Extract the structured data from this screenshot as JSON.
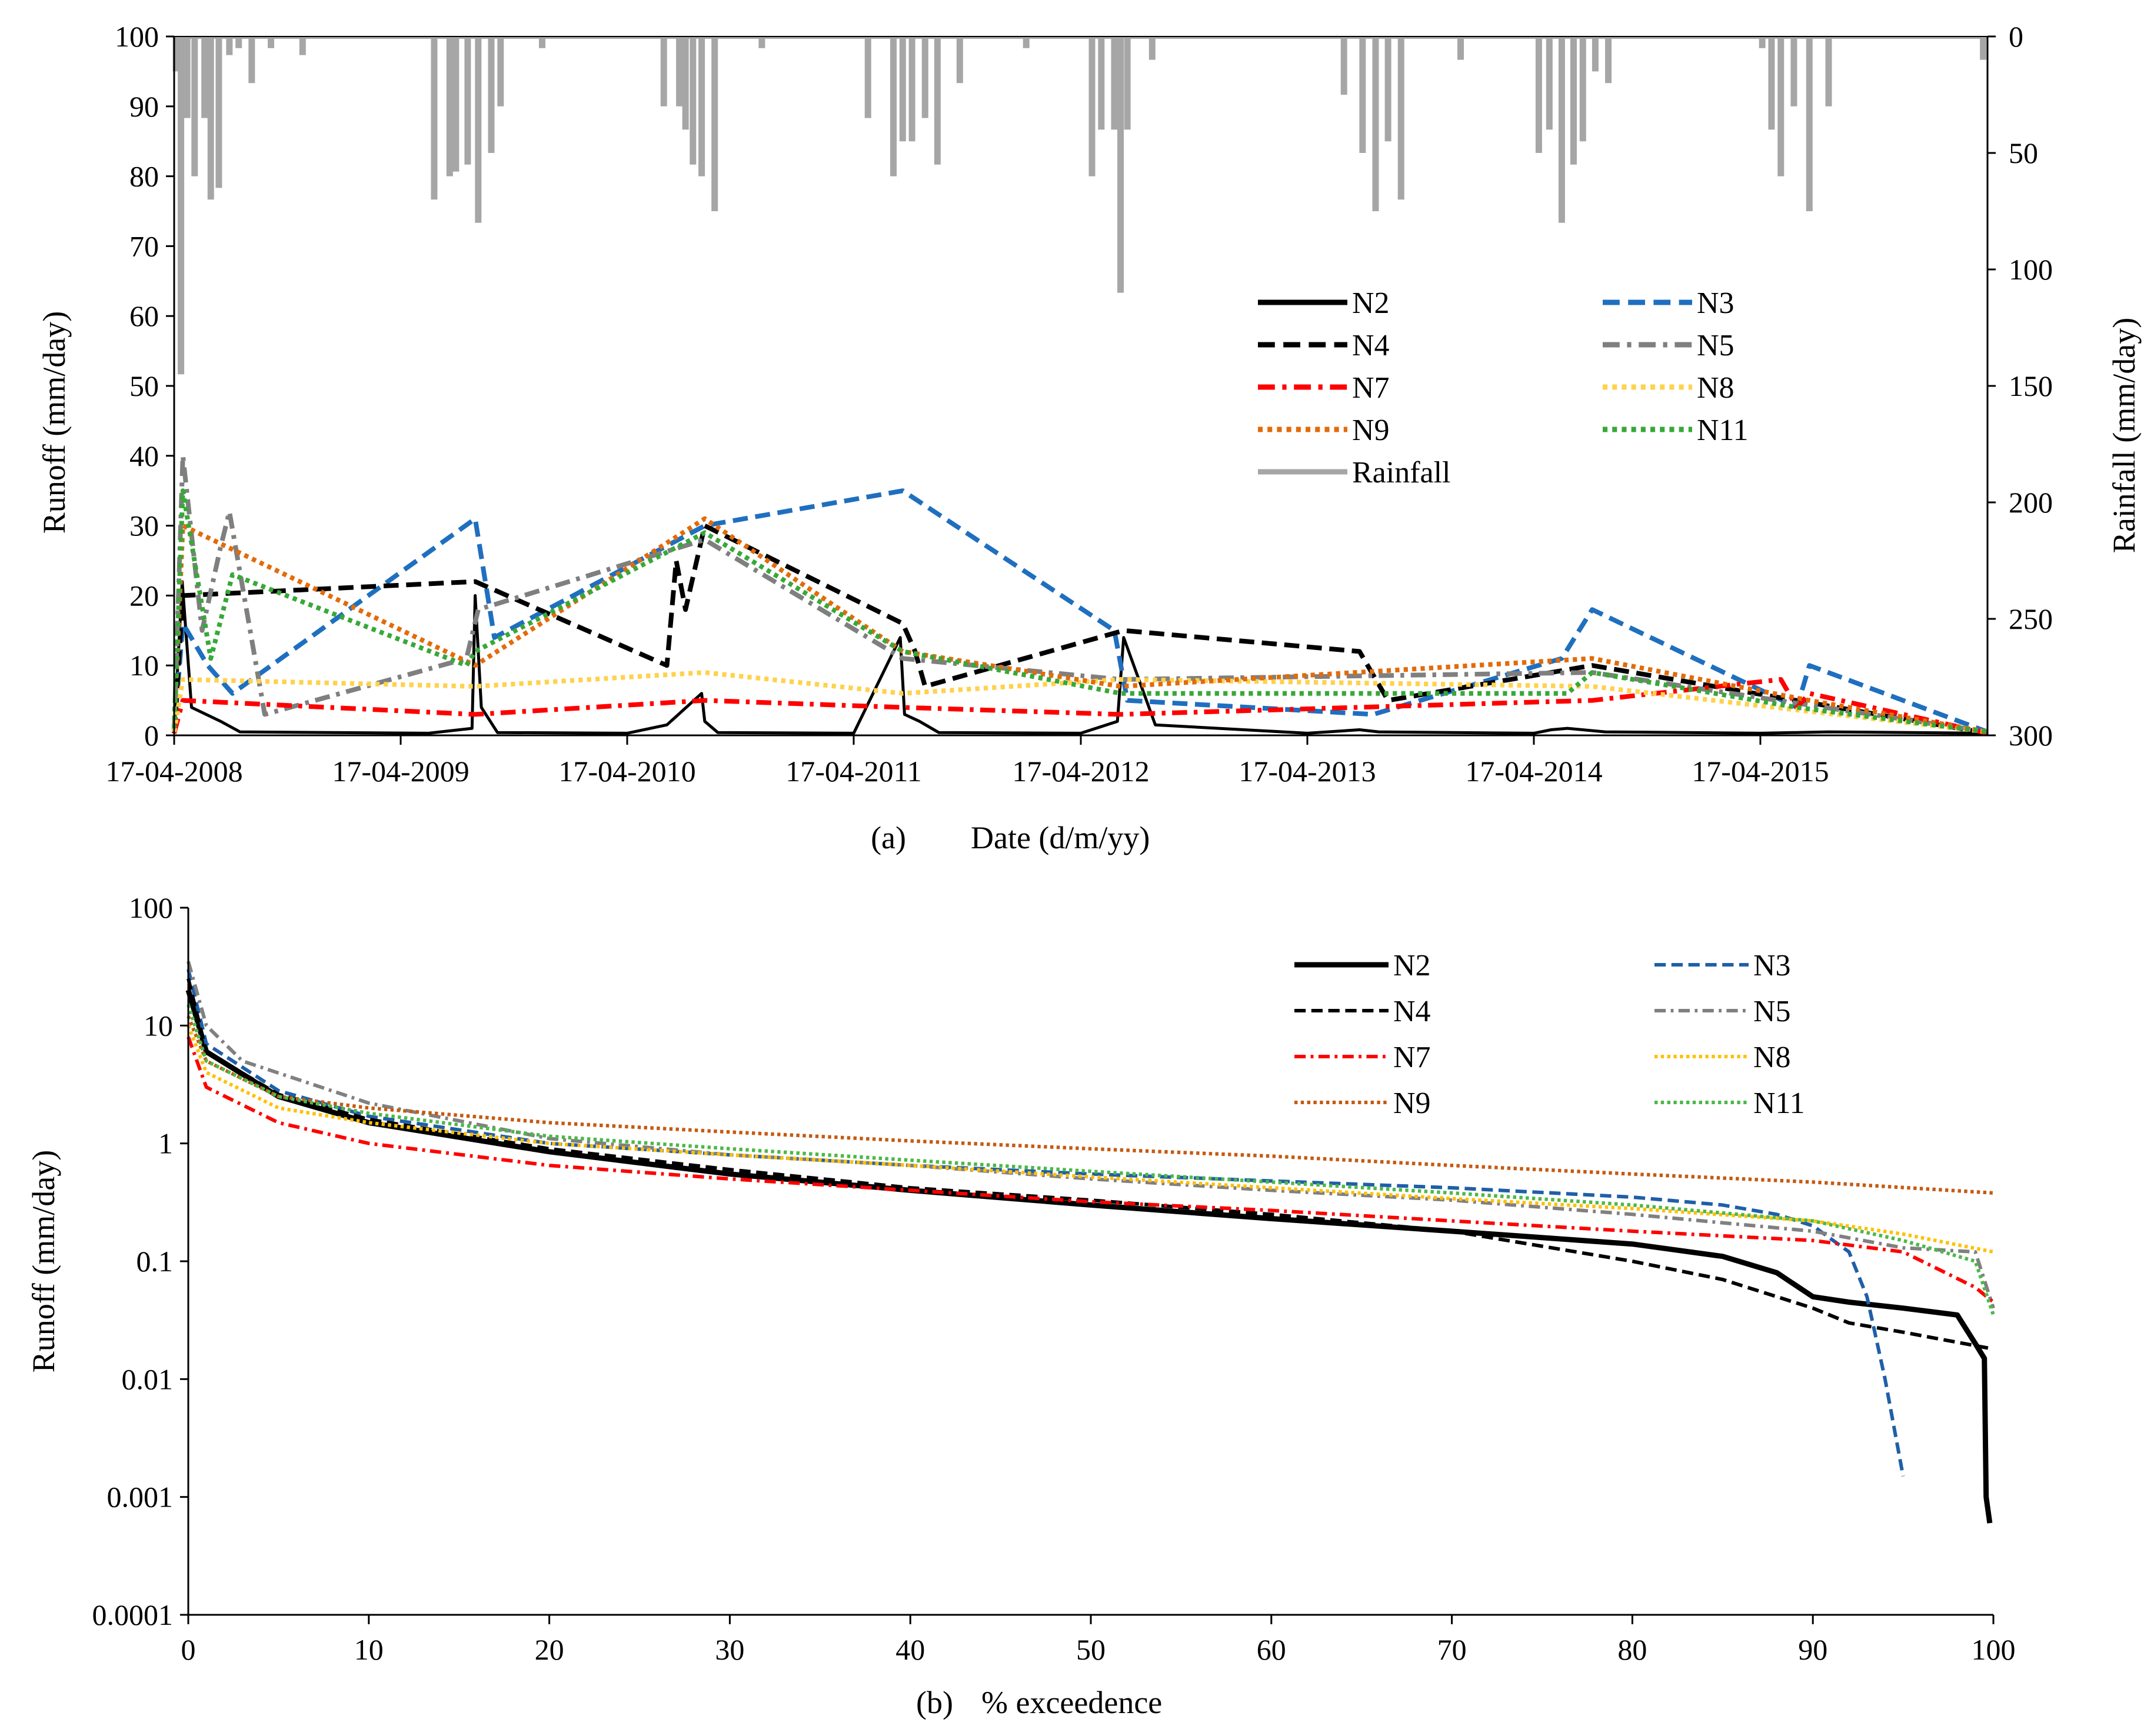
{
  "chart_data": [
    {
      "panel": "(a)",
      "type": "line",
      "xlabel": "Date (d/m/yy)",
      "ylabel": "Runoff (mm/day)",
      "y2label": "Rainfall (mm/day)",
      "xlim": [
        "2008-04-17",
        "2016-04-17"
      ],
      "ylim": [
        0,
        100
      ],
      "y2lim": [
        0,
        300
      ],
      "y2_inverted": true,
      "x_tick_labels": [
        "17-04-2008",
        "17-04-2009",
        "17-04-2010",
        "17-04-2011",
        "17-04-2012",
        "17-04-2013",
        "17-04-2014",
        "17-04-2015"
      ],
      "y_tick_labels": [
        "0",
        "10",
        "20",
        "30",
        "40",
        "50",
        "60",
        "70",
        "80",
        "90",
        "100"
      ],
      "y2_tick_labels": [
        "0",
        "50",
        "100",
        "150",
        "200",
        "250",
        "300"
      ],
      "legend_position": "center-right",
      "colors": {
        "N2": "#000000",
        "N3": "#1f6fbf",
        "N4": "#000000",
        "N5": "#7f7f7f",
        "N7": "#ff0000",
        "N8": "#ffd24d",
        "N9": "#e26b0a",
        "N11": "#38a838",
        "Rainfall": "#a6a6a6"
      },
      "series": [
        {
          "name": "Rainfall",
          "axis": "right",
          "style": "bars",
          "x": [
            "2008-04-20",
            "2008-04-28",
            "2008-05-08",
            "2008-05-20",
            "2008-06-05",
            "2008-06-15",
            "2008-06-28",
            "2008-07-15",
            "2008-07-30",
            "2008-08-20",
            "2008-09-20",
            "2008-11-10",
            "2009-06-10",
            "2009-07-05",
            "2009-07-15",
            "2009-08-03",
            "2009-08-20",
            "2009-09-10",
            "2009-09-25",
            "2009-12-01",
            "2010-06-15",
            "2010-07-10",
            "2010-07-20",
            "2010-08-01",
            "2010-08-15",
            "2010-09-05",
            "2010-11-20",
            "2011-05-10",
            "2011-06-20",
            "2011-07-05",
            "2011-07-20",
            "2011-08-10",
            "2011-08-30",
            "2011-10-05",
            "2012-01-20",
            "2012-05-05",
            "2012-05-20",
            "2012-06-10",
            "2012-06-20",
            "2012-07-01",
            "2012-08-10",
            "2013-06-15",
            "2013-07-15",
            "2013-08-05",
            "2013-08-25",
            "2013-09-15",
            "2013-12-20",
            "2014-04-25",
            "2014-05-12",
            "2014-06-01",
            "2014-06-20",
            "2014-07-05",
            "2014-07-25",
            "2014-08-15",
            "2015-04-20",
            "2015-05-05",
            "2015-05-20",
            "2015-06-10",
            "2015-07-05",
            "2015-08-05",
            "2016-04-10"
          ],
          "values": [
            15,
            145,
            35,
            60,
            35,
            70,
            65,
            8,
            5,
            20,
            5,
            8,
            70,
            60,
            58,
            55,
            80,
            50,
            30,
            5,
            30,
            30,
            40,
            55,
            60,
            75,
            5,
            35,
            60,
            45,
            45,
            35,
            55,
            20,
            5,
            60,
            40,
            40,
            110,
            40,
            10,
            25,
            50,
            75,
            45,
            70,
            10,
            50,
            40,
            80,
            55,
            45,
            15,
            20,
            5,
            40,
            60,
            30,
            75,
            30,
            10
          ]
        },
        {
          "name": "N2",
          "axis": "left",
          "style": "solid",
          "x": [
            "2008-04-17",
            "2008-04-30",
            "2008-05-15",
            "2008-07-01",
            "2008-08-01",
            "2009-06-01",
            "2009-08-10",
            "2009-08-15",
            "2009-08-25",
            "2009-09-20",
            "2010-04-17",
            "2010-06-20",
            "2010-08-15",
            "2010-08-20",
            "2010-09-10",
            "2011-04-17",
            "2011-07-01",
            "2011-07-08",
            "2011-08-01",
            "2011-09-01",
            "2012-04-17",
            "2012-06-15",
            "2012-06-25",
            "2012-08-15",
            "2013-04-17",
            "2013-07-10",
            "2013-08-10",
            "2014-04-17",
            "2014-05-15",
            "2014-06-10",
            "2014-08-10",
            "2015-04-17",
            "2015-06-15",
            "2015-08-05",
            "2016-04-17"
          ],
          "values": [
            0.3,
            22,
            4,
            2,
            0.5,
            0.3,
            1,
            20,
            4,
            0.4,
            0.3,
            1.5,
            6,
            2,
            0.4,
            0.3,
            14,
            3,
            2,
            0.4,
            0.3,
            2,
            14,
            1.5,
            0.3,
            0.8,
            0.5,
            0.3,
            0.8,
            1,
            0.5,
            0.3,
            0.4,
            0.5,
            0.3
          ]
        },
        {
          "name": "N3",
          "axis": "left",
          "style": "dashed",
          "x": [
            "2008-04-17",
            "2008-05-01",
            "2008-06-10",
            "2008-07-20",
            "2009-08-15",
            "2009-09-15",
            "2010-08-20",
            "2011-07-05",
            "2012-06-10",
            "2012-07-01",
            "2013-08-01",
            "2014-06-01",
            "2014-07-20",
            "2015-06-15",
            "2015-07-05",
            "2016-04-17"
          ],
          "values": [
            0.5,
            16,
            10,
            6,
            31,
            14,
            30,
            35,
            15,
            5,
            3,
            11,
            18,
            4,
            10,
            0.5
          ]
        },
        {
          "name": "N4",
          "axis": "left",
          "style": "dashed",
          "x": [
            "2008-04-17",
            "2008-05-01",
            "2009-08-15",
            "2010-06-20",
            "2010-07-05",
            "2010-07-20",
            "2010-08-20",
            "2011-07-05",
            "2011-07-25",
            "2011-08-10",
            "2012-06-25",
            "2013-07-10",
            "2013-08-25",
            "2014-07-20",
            "2016-04-17"
          ],
          "values": [
            0.3,
            20,
            22,
            10,
            25,
            18,
            30,
            16,
            12,
            7,
            15,
            12,
            5,
            10,
            0.3
          ]
        },
        {
          "name": "N5",
          "axis": "left",
          "style": "dash-dot",
          "x": [
            "2008-04-17",
            "2008-05-01",
            "2008-06-01",
            "2008-07-01",
            "2008-07-15",
            "2008-09-10",
            "2009-08-01",
            "2009-08-20",
            "2010-08-20",
            "2011-07-05",
            "2012-06-20",
            "2014-07-20",
            "2016-04-17"
          ],
          "values": [
            0.5,
            40,
            15,
            27,
            32,
            3,
            11,
            18,
            28,
            11,
            8,
            9,
            0.5
          ]
        },
        {
          "name": "N7",
          "axis": "left",
          "style": "dash-dot",
          "x": [
            "2008-04-17",
            "2008-05-01",
            "2009-08-15",
            "2010-08-20",
            "2011-07-05",
            "2012-06-20",
            "2014-07-20",
            "2015-05-20",
            "2015-06-15",
            "2015-07-05",
            "2016-04-17"
          ],
          "values": [
            0.3,
            5,
            3,
            5,
            4,
            3,
            5,
            8,
            4,
            6,
            0.3
          ]
        },
        {
          "name": "N8",
          "axis": "left",
          "style": "dotted",
          "x": [
            "2008-04-17",
            "2008-05-01",
            "2009-08-15",
            "2010-08-20",
            "2011-07-05",
            "2012-06-20",
            "2014-07-20",
            "2016-04-17"
          ],
          "values": [
            0.5,
            8,
            7,
            9,
            6,
            8,
            7,
            0.5
          ]
        },
        {
          "name": "N9",
          "axis": "left",
          "style": "dotted",
          "x": [
            "2008-04-17",
            "2008-05-01",
            "2009-08-15",
            "2010-08-20",
            "2011-07-05",
            "2012-06-20",
            "2014-07-20",
            "2015-07-05",
            "2016-04-17"
          ],
          "values": [
            1,
            30,
            10,
            31,
            12,
            7,
            11,
            5,
            0.5
          ]
        },
        {
          "name": "N11",
          "axis": "left",
          "style": "dotted",
          "x": [
            "2008-04-17",
            "2008-05-01",
            "2008-06-15",
            "2008-07-20",
            "2009-08-01",
            "2009-08-15",
            "2010-08-20",
            "2011-07-05",
            "2012-06-20",
            "2014-06-10",
            "2014-07-20",
            "2015-06-15",
            "2016-04-17"
          ],
          "values": [
            1,
            35,
            11,
            23,
            10,
            12,
            29,
            12,
            6,
            6,
            9,
            4,
            0.5
          ]
        }
      ]
    },
    {
      "panel": "(b)",
      "type": "line",
      "xlabel": "% exceedence",
      "ylabel": "Runoff (mm/day)",
      "xlim": [
        0,
        100
      ],
      "ylim": [
        0.0001,
        100
      ],
      "yscale": "log",
      "x_tick_labels": [
        "0",
        "10",
        "20",
        "30",
        "40",
        "50",
        "60",
        "70",
        "80",
        "90",
        "100"
      ],
      "y_tick_labels": [
        "0.0001",
        "0.001",
        "0.01",
        "0.1",
        "1",
        "10",
        "100"
      ],
      "legend_position": "top-right",
      "series": [
        {
          "name": "N2",
          "style": "solid",
          "x": [
            0,
            1,
            5,
            10,
            20,
            30,
            40,
            50,
            60,
            70,
            80,
            85,
            88,
            90,
            92,
            95,
            98,
            99,
            99.5,
            99.6,
            99.8
          ],
          "y": [
            20,
            6,
            2.5,
            1.5,
            0.85,
            0.55,
            0.4,
            0.3,
            0.23,
            0.18,
            0.14,
            0.11,
            0.08,
            0.05,
            0.045,
            0.04,
            0.035,
            0.02,
            0.015,
            0.001,
            0.0006
          ]
        },
        {
          "name": "N3",
          "style": "dashed",
          "x": [
            0,
            1,
            5,
            10,
            20,
            30,
            40,
            50,
            60,
            70,
            80,
            85,
            88,
            90,
            92,
            93,
            94,
            95
          ],
          "y": [
            30,
            7,
            2.8,
            1.7,
            1.0,
            0.8,
            0.65,
            0.55,
            0.48,
            0.42,
            0.35,
            0.3,
            0.25,
            0.2,
            0.12,
            0.05,
            0.01,
            0.0015
          ]
        },
        {
          "name": "N4",
          "style": "dashed",
          "x": [
            0,
            1,
            5,
            10,
            20,
            30,
            40,
            50,
            60,
            70,
            80,
            85,
            90,
            92,
            95,
            100
          ],
          "y": [
            25,
            6,
            2.6,
            1.6,
            0.9,
            0.6,
            0.42,
            0.33,
            0.25,
            0.18,
            0.1,
            0.07,
            0.04,
            0.03,
            0.025,
            0.018
          ]
        },
        {
          "name": "N5",
          "style": "dash-dot",
          "x": [
            0,
            1,
            3,
            10,
            20,
            30,
            40,
            50,
            60,
            70,
            80,
            90,
            95,
            99,
            100
          ],
          "y": [
            35,
            10,
            5,
            2.2,
            1.1,
            0.8,
            0.65,
            0.5,
            0.4,
            0.33,
            0.25,
            0.18,
            0.13,
            0.12,
            0.04
          ]
        },
        {
          "name": "N7",
          "style": "dash-dot",
          "x": [
            0,
            1,
            5,
            10,
            20,
            30,
            40,
            50,
            60,
            70,
            80,
            90,
            95,
            99,
            100
          ],
          "y": [
            8,
            3,
            1.5,
            1.0,
            0.65,
            0.5,
            0.4,
            0.32,
            0.27,
            0.22,
            0.18,
            0.15,
            0.12,
            0.06,
            0.045
          ]
        },
        {
          "name": "N8",
          "style": "dotted",
          "x": [
            0,
            1,
            5,
            10,
            20,
            30,
            40,
            50,
            60,
            70,
            80,
            90,
            95,
            100
          ],
          "y": [
            10,
            4,
            2,
            1.5,
            1.0,
            0.8,
            0.65,
            0.52,
            0.42,
            0.34,
            0.28,
            0.22,
            0.17,
            0.12
          ]
        },
        {
          "name": "N9",
          "style": "dotted",
          "x": [
            0,
            1,
            5,
            10,
            20,
            30,
            40,
            50,
            60,
            70,
            80,
            90,
            100
          ],
          "y": [
            12,
            5,
            2.5,
            2,
            1.5,
            1.25,
            1.05,
            0.9,
            0.78,
            0.65,
            0.55,
            0.47,
            0.38
          ]
        },
        {
          "name": "N11",
          "style": "dotted",
          "x": [
            0,
            1,
            5,
            10,
            20,
            30,
            40,
            50,
            60,
            70,
            80,
            90,
            95,
            99,
            100
          ],
          "y": [
            15,
            5,
            2.5,
            1.8,
            1.15,
            0.9,
            0.72,
            0.58,
            0.47,
            0.38,
            0.3,
            0.22,
            0.15,
            0.1,
            0.035
          ]
        }
      ]
    }
  ],
  "panel_a": {
    "caption_letter": "(a)",
    "xlabel": "Date (d/m/yy)",
    "ylabel": "Runoff (mm/day)",
    "y2label": "Rainfall (mm/day)",
    "legend": [
      {
        "name": "N2",
        "color": "#000000",
        "style": "solid"
      },
      {
        "name": "N3",
        "color": "#1f6fbf",
        "style": "dashed"
      },
      {
        "name": "N4",
        "color": "#000000",
        "style": "dashed"
      },
      {
        "name": "N5",
        "color": "#7f7f7f",
        "style": "dash-dot"
      },
      {
        "name": "N7",
        "color": "#ff0000",
        "style": "dash-dot"
      },
      {
        "name": "N8",
        "color": "#ffd24d",
        "style": "dotted"
      },
      {
        "name": "N9",
        "color": "#e26b0a",
        "style": "dotted"
      },
      {
        "name": "N11",
        "color": "#38a838",
        "style": "dotted"
      },
      {
        "name": "Rainfall",
        "color": "#a6a6a6",
        "style": "solid"
      }
    ]
  },
  "panel_b": {
    "caption_letter": "(b)",
    "xlabel": "% exceedence",
    "ylabel": "Runoff (mm/day)",
    "legend": [
      {
        "name": "N2",
        "color": "#000000",
        "style": "solid"
      },
      {
        "name": "N3",
        "color": "#1f5fa8",
        "style": "dashed"
      },
      {
        "name": "N4",
        "color": "#000000",
        "style": "dashed"
      },
      {
        "name": "N5",
        "color": "#808080",
        "style": "dash-dot"
      },
      {
        "name": "N7",
        "color": "#ff0000",
        "style": "dash-dot"
      },
      {
        "name": "N8",
        "color": "#ffc000",
        "style": "dotted"
      },
      {
        "name": "N9",
        "color": "#c55a11",
        "style": "dotted"
      },
      {
        "name": "N11",
        "color": "#4db848",
        "style": "dotted"
      }
    ]
  }
}
